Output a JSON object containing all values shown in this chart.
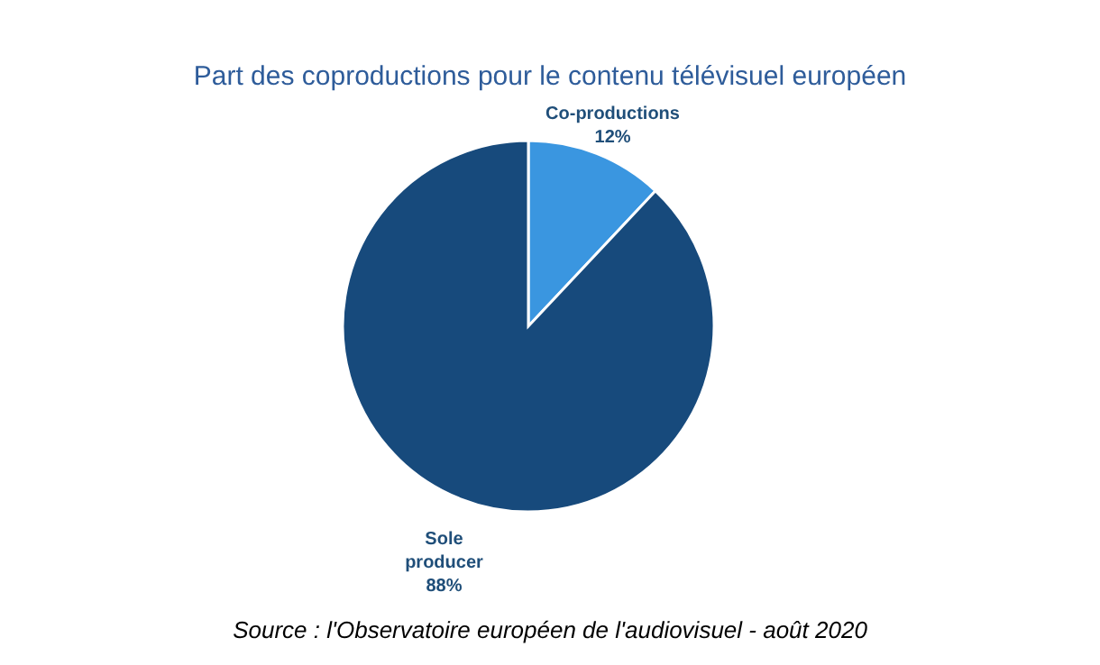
{
  "chart_data": {
    "type": "pie",
    "title": "Part des coproductions pour le contenu télévisuel européen",
    "categories": [
      "Co-productions",
      "Sole producer"
    ],
    "values": [
      12,
      88
    ],
    "colors": [
      "#3a96e0",
      "#174a7c"
    ],
    "value_labels": [
      "12%",
      "88%"
    ],
    "annotations": [
      "Source : l'Observatoire européen de l'audiovisuel - août 2020"
    ]
  }
}
